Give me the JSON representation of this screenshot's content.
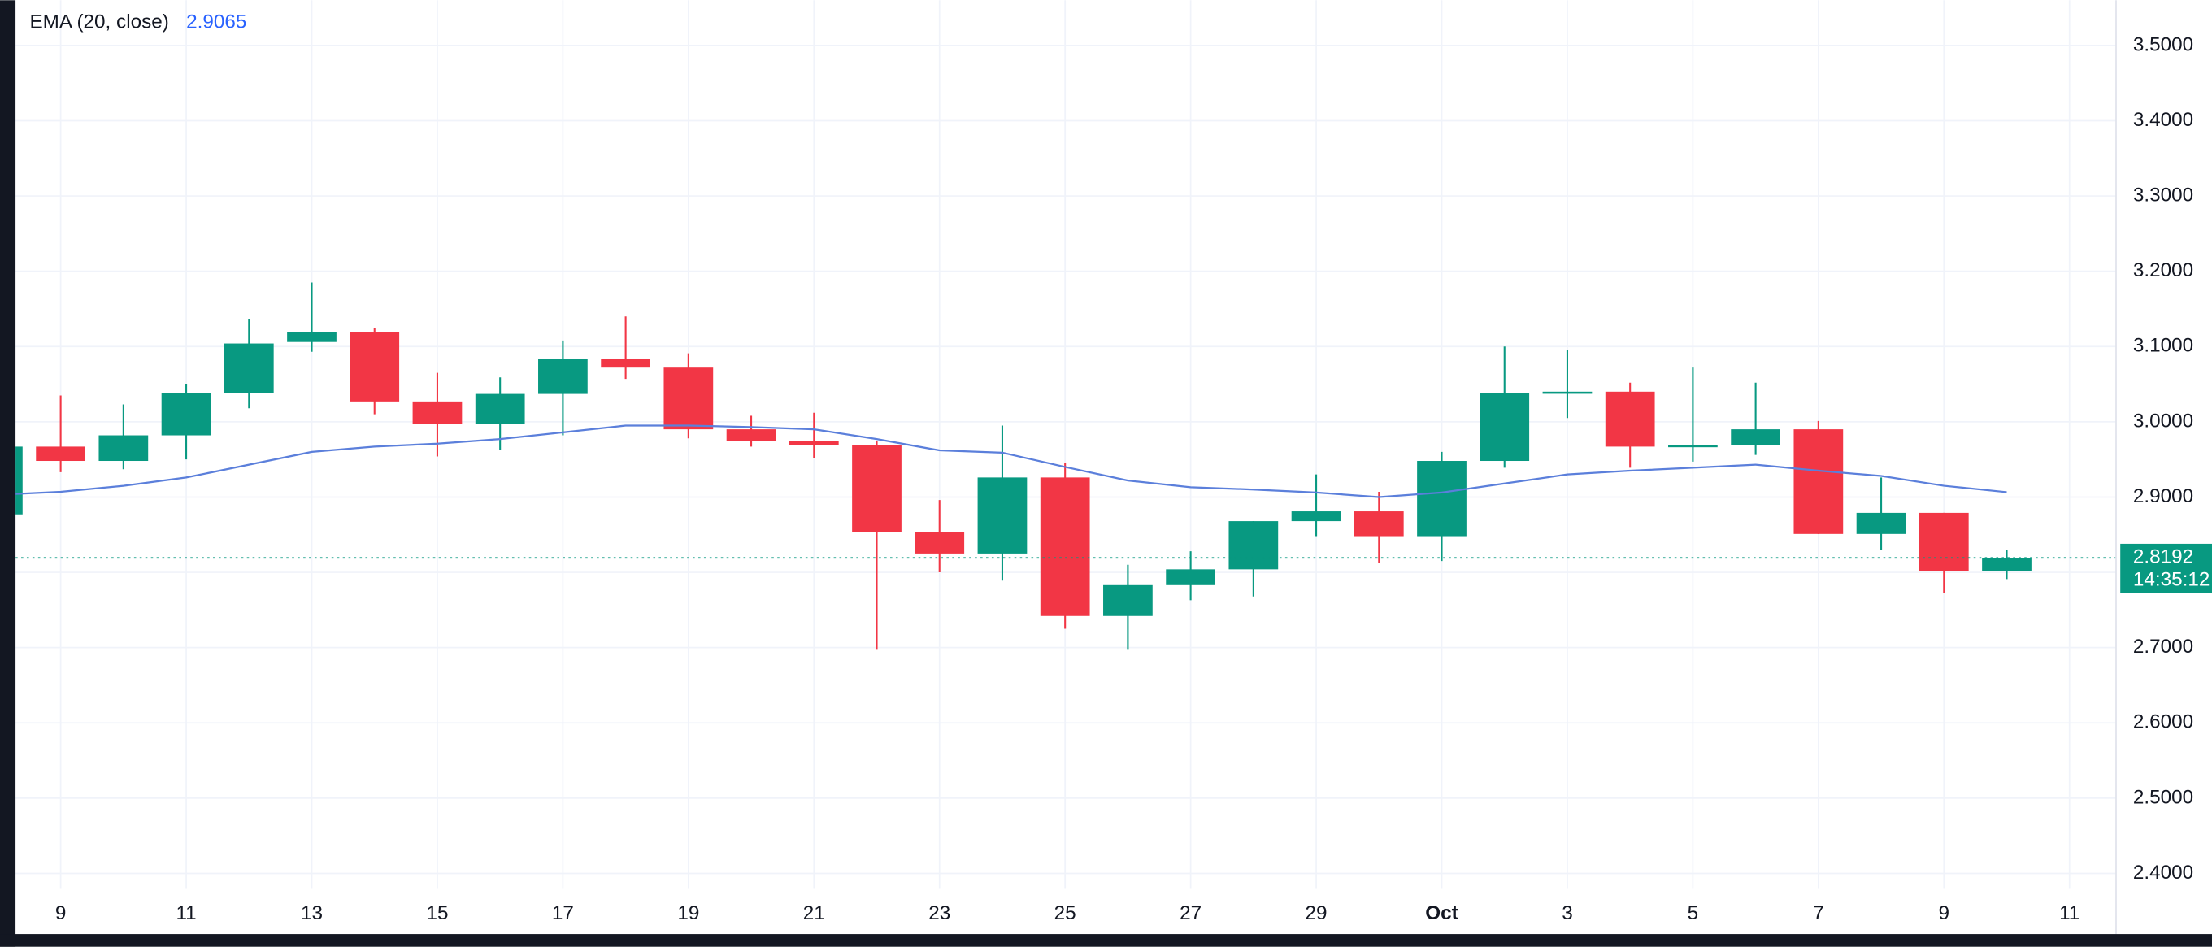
{
  "chart_data": {
    "type": "candlestick",
    "categories": [
      null,
      "9",
      null,
      "11",
      null,
      "13",
      null,
      "15",
      null,
      "17",
      null,
      "19",
      null,
      "21",
      null,
      "23",
      null,
      "25",
      null,
      "27",
      null,
      "29",
      null,
      "Oct",
      null,
      "3",
      null,
      "5",
      null,
      "7",
      null,
      "9",
      null,
      "11"
    ],
    "open": [
      2.877,
      2.967,
      2.948,
      2.982,
      3.038,
      3.106,
      3.119,
      3.027,
      2.997,
      3.037,
      3.083,
      3.072,
      2.99,
      2.975,
      2.969,
      2.853,
      2.825,
      2.926,
      2.742,
      2.783,
      2.804,
      2.868,
      2.881,
      2.847,
      2.948,
      3.038,
      3.04,
      2.967,
      2.969,
      2.99,
      2.851,
      2.879,
      2.802,
      null
    ],
    "high": [
      2.98,
      3.035,
      3.023,
      3.05,
      3.136,
      3.185,
      3.125,
      3.065,
      3.059,
      3.108,
      3.14,
      3.091,
      3.008,
      3.012,
      2.975,
      2.896,
      2.995,
      2.945,
      2.81,
      2.828,
      2.868,
      2.93,
      2.907,
      2.96,
      3.1,
      3.095,
      3.052,
      3.072,
      3.052,
      3.001,
      2.926,
      2.879,
      2.83,
      null
    ],
    "low": [
      2.87,
      2.933,
      2.937,
      2.95,
      3.018,
      3.093,
      3.01,
      2.954,
      2.963,
      2.982,
      3.057,
      2.978,
      2.967,
      2.952,
      2.697,
      2.8,
      2.789,
      2.725,
      2.697,
      2.763,
      2.768,
      2.847,
      2.813,
      2.815,
      2.939,
      3.005,
      2.939,
      2.947,
      2.956,
      2.851,
      2.83,
      2.772,
      2.791,
      null
    ],
    "close": [
      2.967,
      2.948,
      2.982,
      3.038,
      3.104,
      3.119,
      3.027,
      2.997,
      3.037,
      3.083,
      3.072,
      2.99,
      2.975,
      2.969,
      2.853,
      2.825,
      2.926,
      2.742,
      2.783,
      2.804,
      2.868,
      2.881,
      2.847,
      2.948,
      3.038,
      3.04,
      2.967,
      2.969,
      2.99,
      2.851,
      2.879,
      2.802,
      2.8192,
      null
    ],
    "up_color": "#089981",
    "down_color": "#f23645",
    "ema": {
      "name": "EMA (20, close)",
      "color": "#5b7fdb",
      "values": [
        2.903,
        2.907,
        2.915,
        2.926,
        2.943,
        2.96,
        2.967,
        2.971,
        2.977,
        2.986,
        2.995,
        2.995,
        2.993,
        2.99,
        2.977,
        2.962,
        2.959,
        2.94,
        2.922,
        2.913,
        2.91,
        2.906,
        2.9,
        2.906,
        2.918,
        2.93,
        2.935,
        2.939,
        2.943,
        2.935,
        2.928,
        2.915,
        2.9065,
        null
      ]
    },
    "countdown": "14:35:12",
    "ylim": [
      2.382,
      3.56
    ],
    "yticks": [
      {
        "value": 2.4,
        "label": "2.4000"
      },
      {
        "value": 2.5,
        "label": "2.5000"
      },
      {
        "value": 2.6,
        "label": "2.6000"
      },
      {
        "value": 2.7,
        "label": "2.7000"
      },
      {
        "value": 2.8,
        "label": "2.8000"
      },
      {
        "value": 2.9,
        "label": "2.9000"
      },
      {
        "value": 3.0,
        "label": "3.0000"
      },
      {
        "value": 3.1,
        "label": "3.1000"
      },
      {
        "value": 3.2,
        "label": "3.2000"
      },
      {
        "value": 3.3,
        "label": "3.3000"
      },
      {
        "value": 3.4,
        "label": "3.4000"
      },
      {
        "value": 3.5,
        "label": "3.5000"
      }
    ],
    "grid": true
  }
}
